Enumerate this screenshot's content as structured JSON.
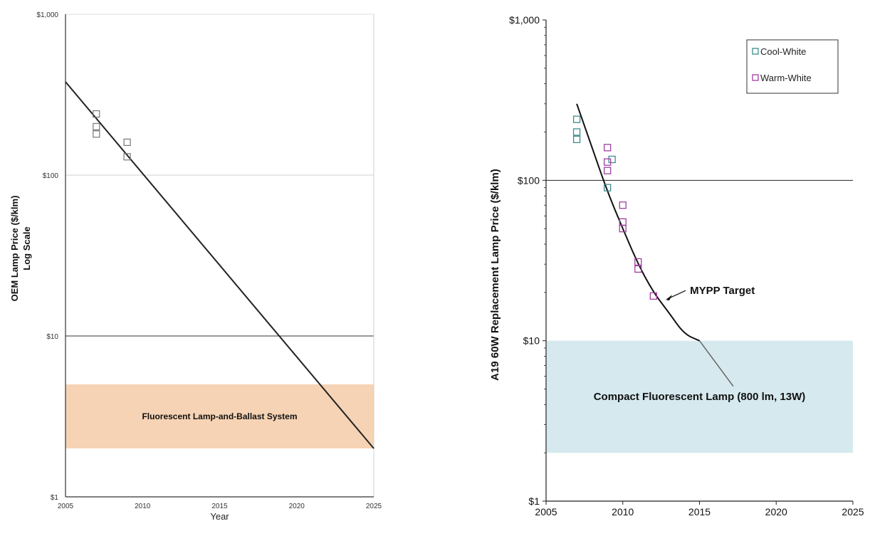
{
  "chart_data": [
    {
      "type": "scatter",
      "yscale": "log",
      "title": "",
      "xlabel": "Year",
      "ylabel": "OEM Lamp Price ($/klm)",
      "ylabel2": "Log Scale",
      "xlim": [
        2005,
        2025
      ],
      "ylim": [
        1,
        1000
      ],
      "x_ticks": [
        "2005",
        "2010",
        "2015",
        "2020",
        "2025"
      ],
      "y_ticks": [
        "$1",
        "$10",
        "$100",
        "$1,000"
      ],
      "grid": "major horizontal lines at $10 and $100",
      "band": {
        "label": "Fluorescent Lamp-and-Ballast System",
        "y_range": [
          2,
          5
        ],
        "color": "#f6d3b4"
      },
      "series": [
        {
          "values": [
            [
              2007,
              240
            ],
            [
              2007,
              200
            ],
            [
              2007,
              180
            ],
            [
              2009,
              160
            ],
            [
              2009,
              130
            ]
          ],
          "marker": "square",
          "color": "#777777"
        }
      ],
      "trend_line": {
        "points": [
          [
            2005,
            380
          ],
          [
            2025,
            2
          ]
        ],
        "color": "#222222"
      }
    },
    {
      "type": "scatter",
      "yscale": "log",
      "title": "",
      "xlabel": "",
      "ylabel": "A19 60W Replacement  Lamp Price ($/klm)",
      "xlim": [
        2005,
        2025
      ],
      "ylim": [
        1,
        1000
      ],
      "x_ticks": [
        "2005",
        "2010",
        "2015",
        "2020",
        "2025"
      ],
      "y_ticks": [
        "$1",
        "$10",
        "$100",
        "$1,000"
      ],
      "grid": "major horizontal line at $100",
      "legend_position": "top-right",
      "band": {
        "label": "Compact Fluorescent Lamp (800 lm, 13W)",
        "y_range": [
          2,
          10
        ],
        "color": "#d6e9ee"
      },
      "series": [
        {
          "name": "Cool-White",
          "color": "#3e8c8c",
          "values": [
            [
              2007,
              240
            ],
            [
              2007,
              200
            ],
            [
              2007,
              180
            ],
            [
              2009,
              90
            ],
            [
              2009.3,
              135
            ]
          ]
        },
        {
          "name": "Warm-White",
          "color": "#a040a0",
          "values": [
            [
              2009,
              160
            ],
            [
              2009,
              130
            ],
            [
              2009,
              115
            ],
            [
              2010,
              70
            ],
            [
              2010,
              55
            ],
            [
              2010,
              50
            ],
            [
              2011,
              31
            ],
            [
              2011,
              28
            ],
            [
              2012,
              19
            ]
          ]
        }
      ],
      "target_curve": {
        "label": "MYPP Target",
        "points": [
          [
            2007,
            300
          ],
          [
            2008,
            160
          ],
          [
            2009,
            85
          ],
          [
            2010,
            50
          ],
          [
            2011,
            30
          ],
          [
            2012,
            20
          ],
          [
            2013,
            15
          ],
          [
            2014,
            11
          ],
          [
            2015,
            10
          ]
        ],
        "extension": [
          [
            2015,
            10
          ],
          [
            2017.2,
            5.2
          ]
        ]
      }
    }
  ]
}
